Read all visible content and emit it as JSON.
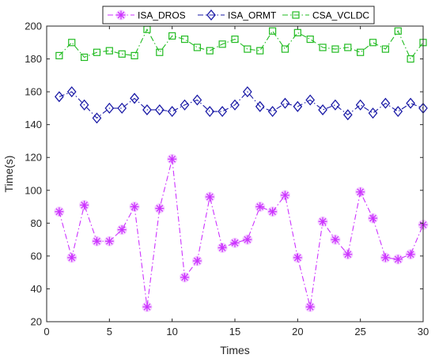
{
  "chart_data": {
    "type": "line",
    "title": "",
    "xlabel": "Times",
    "ylabel": "Time(s)",
    "xlim": [
      0,
      30
    ],
    "ylim": [
      20,
      200
    ],
    "x_ticks": [
      "0",
      "5",
      "10",
      "15",
      "20",
      "25",
      "30"
    ],
    "y_ticks": [
      "20",
      "40",
      "60",
      "80",
      "100",
      "120",
      "140",
      "160",
      "180",
      "200"
    ],
    "grid": false,
    "legend_position": "top",
    "x": [
      1,
      2,
      3,
      4,
      5,
      6,
      7,
      8,
      9,
      10,
      11,
      12,
      13,
      14,
      15,
      16,
      17,
      18,
      19,
      20,
      21,
      22,
      23,
      24,
      25,
      26,
      27,
      28,
      29,
      30
    ],
    "series": [
      {
        "name": "ISA_DROS",
        "color": "#cc33ff",
        "marker": "asterisk",
        "line_style": "dash-dot",
        "values": [
          87,
          59,
          91,
          69,
          69,
          76,
          90,
          29,
          89,
          119,
          47,
          57,
          96,
          65,
          68,
          70,
          90,
          87,
          97,
          59,
          29,
          81,
          70,
          61,
          99,
          83,
          59,
          58,
          61,
          79
        ]
      },
      {
        "name": "ISA_ORMT",
        "color": "#1a1aa6",
        "marker": "diamond",
        "line_style": "dash-dot",
        "values": [
          157,
          160,
          152,
          144,
          150,
          150,
          156,
          149,
          149,
          148,
          152,
          155,
          148,
          148,
          152,
          160,
          151,
          148,
          153,
          151,
          155,
          149,
          152,
          146,
          152,
          147,
          153,
          148,
          153,
          150
        ]
      },
      {
        "name": "CSA_VCLDC",
        "color": "#22bb22",
        "marker": "square",
        "line_style": "dash-dot",
        "values": [
          182,
          190,
          181,
          184,
          185,
          183,
          182,
          198,
          184,
          194,
          192,
          187,
          185,
          189,
          192,
          186,
          185,
          197,
          186,
          196,
          192,
          187,
          186,
          187,
          184,
          190,
          186,
          197,
          180,
          190
        ]
      }
    ]
  }
}
